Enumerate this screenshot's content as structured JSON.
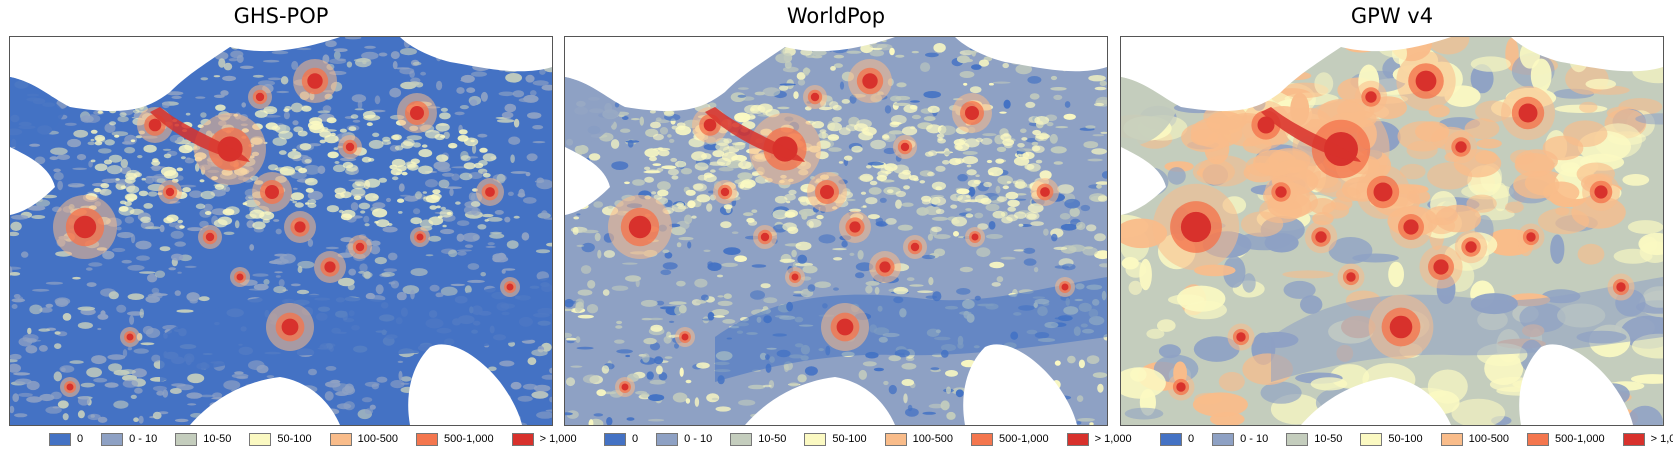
{
  "legend": {
    "classes": [
      {
        "label": "0",
        "color": "#4472c4"
      },
      {
        "label": "0 - 10",
        "color": "#8ea1c4"
      },
      {
        "label": "10-50",
        "color": "#c4cdbd"
      },
      {
        "label": "50-100",
        "color": "#fbf9c2"
      },
      {
        "label": "100-500",
        "color": "#f9bc8a"
      },
      {
        "label": "500-1,000",
        "color": "#f4764e"
      },
      {
        "label": "> 1,000",
        "color": "#d8312c"
      }
    ]
  },
  "panels": [
    {
      "title": "GHS-POP",
      "base_color": "#4472c4",
      "secondary_color": "#8ea1c4"
    },
    {
      "title": "WorldPop",
      "base_color": "#8ea1c4",
      "secondary_color": "#c4cdbd"
    },
    {
      "title": "GPW v4",
      "base_color": "#c4cdbd",
      "secondary_color": "#8ea1c4"
    }
  ],
  "colors": {
    "land_outline": "#c8d2e8",
    "sea": "#ffffff",
    "frame": "#555555"
  }
}
